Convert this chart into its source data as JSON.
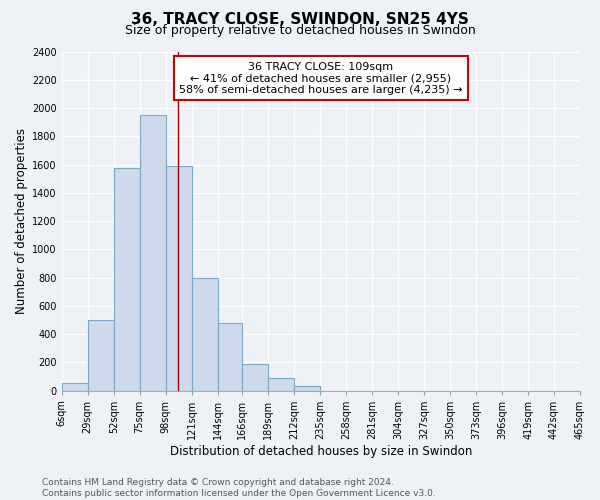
{
  "title": "36, TRACY CLOSE, SWINDON, SN25 4YS",
  "subtitle": "Size of property relative to detached houses in Swindon",
  "xlabel": "Distribution of detached houses by size in Swindon",
  "ylabel": "Number of detached properties",
  "bar_edges": [
    6,
    29,
    52,
    75,
    98,
    121,
    144,
    166,
    189,
    212,
    235,
    258,
    281,
    304,
    327,
    350,
    373,
    396,
    419,
    442,
    465
  ],
  "bar_heights": [
    50,
    500,
    1575,
    1950,
    1590,
    800,
    480,
    185,
    90,
    35,
    0,
    0,
    0,
    0,
    0,
    0,
    0,
    0,
    0,
    0
  ],
  "bar_color": "#ccdaeb",
  "bar_edge_color": "#7aaac8",
  "property_size": 109,
  "property_line_color": "#aa0000",
  "annotation_line1": "36 TRACY CLOSE: 109sqm",
  "annotation_line2": "← 41% of detached houses are smaller (2,955)",
  "annotation_line3": "58% of semi-detached houses are larger (4,235) →",
  "annotation_box_color": "#ffffff",
  "annotation_box_edge": "#cc0000",
  "ylim": [
    0,
    2400
  ],
  "yticks": [
    0,
    200,
    400,
    600,
    800,
    1000,
    1200,
    1400,
    1600,
    1800,
    2000,
    2200,
    2400
  ],
  "tick_labels": [
    "6sqm",
    "29sqm",
    "52sqm",
    "75sqm",
    "98sqm",
    "121sqm",
    "144sqm",
    "166sqm",
    "189sqm",
    "212sqm",
    "235sqm",
    "258sqm",
    "281sqm",
    "304sqm",
    "327sqm",
    "350sqm",
    "373sqm",
    "396sqm",
    "419sqm",
    "442sqm",
    "465sqm"
  ],
  "footer_line1": "Contains HM Land Registry data © Crown copyright and database right 2024.",
  "footer_line2": "Contains public sector information licensed under the Open Government Licence v3.0.",
  "background_color": "#eef2f7",
  "grid_color": "#ffffff",
  "title_fontsize": 11,
  "subtitle_fontsize": 9,
  "axis_label_fontsize": 8.5,
  "tick_fontsize": 7,
  "footer_fontsize": 6.5,
  "annotation_fontsize": 8
}
